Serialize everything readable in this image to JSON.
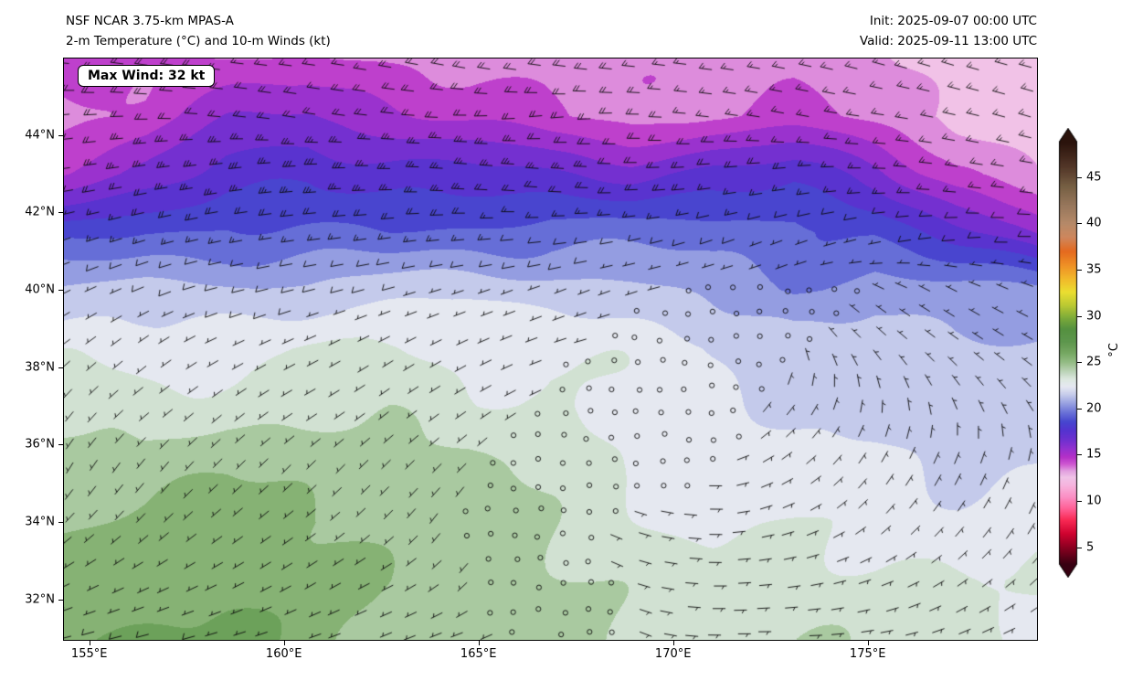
{
  "header": {
    "title_line1": "NSF NCAR 3.75-km MPAS-A",
    "title_line2": "2-m Temperature (°C) and 10-m Winds (kt)",
    "init_label": "Init: 2025-09-07 00:00 UTC",
    "valid_label": "Valid: 2025-09-11 13:00 UTC"
  },
  "map": {
    "max_wind_badge": "Max Wind: 32 kt"
  },
  "axes": {
    "lon_range": [
      154.35,
      179.35
    ],
    "lat_range": [
      30.95,
      45.98
    ],
    "x_ticks": [
      {
        "value": 155,
        "label": "155°E"
      },
      {
        "value": 160,
        "label": "160°E"
      },
      {
        "value": 165,
        "label": "165°E"
      },
      {
        "value": 170,
        "label": "170°E"
      },
      {
        "value": 175,
        "label": "175°E"
      }
    ],
    "y_ticks": [
      {
        "value": 32,
        "label": "32°N"
      },
      {
        "value": 34,
        "label": "34°N"
      },
      {
        "value": 36,
        "label": "36°N"
      },
      {
        "value": 38,
        "label": "38°N"
      },
      {
        "value": 40,
        "label": "40°N"
      },
      {
        "value": 42,
        "label": "42°N"
      },
      {
        "value": 44,
        "label": "44°N"
      }
    ]
  },
  "colorbar": {
    "label": "°C",
    "ticks": [
      5,
      10,
      15,
      20,
      25,
      30,
      35,
      40,
      45
    ],
    "range": [
      3.2,
      48.8
    ],
    "stops": [
      [
        3.0,
        "#2e0110"
      ],
      [
        5.0,
        "#8a0021"
      ],
      [
        6.5,
        "#cf0330"
      ],
      [
        8.0,
        "#f92a55"
      ],
      [
        9.2,
        "#ff5f95"
      ],
      [
        10.5,
        "#fb90c5"
      ],
      [
        11.7,
        "#f7b3de"
      ],
      [
        12.6,
        "#f0c4e8"
      ],
      [
        13.3,
        "#e2a0e0"
      ],
      [
        14.0,
        "#cf5ad2"
      ],
      [
        14.8,
        "#b430c8"
      ],
      [
        15.6,
        "#9632cf"
      ],
      [
        16.6,
        "#7030d0"
      ],
      [
        17.6,
        "#5633cf"
      ],
      [
        18.6,
        "#4747cf"
      ],
      [
        19.6,
        "#6a72d8"
      ],
      [
        20.6,
        "#99a2e2"
      ],
      [
        21.6,
        "#c9cfec"
      ],
      [
        22.4,
        "#e6e8f2"
      ],
      [
        23.2,
        "#dde8e0"
      ],
      [
        24.0,
        "#bdd5ba"
      ],
      [
        25.0,
        "#95bd86"
      ],
      [
        26.0,
        "#76a863"
      ],
      [
        27.2,
        "#5e974e"
      ],
      [
        28.6,
        "#559140"
      ],
      [
        29.8,
        "#7cab3a"
      ],
      [
        31.2,
        "#bcca33"
      ],
      [
        32.6,
        "#ebdf31"
      ],
      [
        34.0,
        "#f2ba2b"
      ],
      [
        35.5,
        "#ef9126"
      ],
      [
        37.0,
        "#e56a1f"
      ],
      [
        38.5,
        "#cf875d"
      ],
      [
        40.0,
        "#b68a69"
      ],
      [
        42.0,
        "#97775c"
      ],
      [
        44.0,
        "#776044"
      ],
      [
        46.0,
        "#55392a"
      ],
      [
        48.8,
        "#2b130c"
      ]
    ]
  },
  "chart_data": {
    "type": "heatmap",
    "title": "NSF NCAR 3.75-km MPAS-A",
    "subtitle": "2-m Temperature (°C) and 10-m Winds (kt)",
    "init_time": "2025-09-07 00:00 UTC",
    "valid_time": "2025-09-11 13:00 UTC",
    "max_wind_kt": 32,
    "units": {
      "temperature": "°C",
      "wind": "kt",
      "x": "degrees east",
      "y": "degrees north"
    },
    "xlim": [
      154.35,
      179.35
    ],
    "ylim": [
      30.95,
      45.98
    ],
    "lon_grid": [
      154.35,
      156.43,
      158.52,
      160.6,
      162.68,
      164.77,
      166.85,
      168.93,
      171.02,
      173.1,
      175.18,
      177.27,
      179.35
    ],
    "lat_grid": [
      46.0,
      44.5,
      43.0,
      41.5,
      40.0,
      38.5,
      37.0,
      35.5,
      34.0,
      32.5,
      31.0
    ],
    "temperature_c": [
      [
        14.0,
        13.8,
        13.9,
        14.2,
        14.0,
        13.8,
        14.0,
        14.1,
        13.8,
        13.6,
        13.0,
        12.2,
        11.8
      ],
      [
        13.8,
        14.3,
        15.7,
        16.4,
        15.8,
        14.9,
        14.1,
        13.7,
        14.0,
        13.9,
        13.3,
        12.7,
        12.5
      ],
      [
        15.2,
        16.2,
        17.6,
        18.2,
        17.8,
        17.6,
        17.0,
        16.6,
        17.2,
        17.4,
        16.2,
        14.3,
        13.3
      ],
      [
        18.4,
        19.2,
        19.6,
        19.2,
        19.0,
        19.2,
        19.6,
        19.2,
        19.0,
        19.4,
        18.8,
        17.2,
        16.0
      ],
      [
        21.2,
        21.6,
        21.6,
        21.4,
        21.6,
        21.6,
        21.4,
        21.0,
        20.4,
        19.8,
        20.8,
        20.6,
        20.4
      ],
      [
        23.0,
        23.0,
        22.8,
        23.0,
        22.9,
        22.8,
        22.8,
        22.4,
        22.0,
        21.8,
        21.9,
        21.4,
        21.4
      ],
      [
        23.7,
        23.5,
        23.7,
        23.5,
        23.4,
        23.1,
        23.0,
        22.7,
        22.3,
        22.1,
        22.1,
        21.7,
        21.7
      ],
      [
        24.6,
        24.4,
        24.6,
        24.4,
        24.1,
        24.0,
        23.5,
        23.0,
        22.7,
        22.5,
        22.4,
        22.1,
        22.0
      ],
      [
        25.1,
        25.0,
        25.2,
        25.0,
        24.7,
        24.4,
        24.0,
        23.5,
        23.1,
        23.0,
        22.8,
        22.5,
        22.4
      ],
      [
        25.6,
        25.5,
        25.4,
        25.2,
        25.0,
        24.7,
        24.3,
        24.0,
        23.7,
        23.4,
        23.1,
        23.0,
        22.9
      ],
      [
        26.1,
        25.9,
        25.7,
        25.5,
        25.1,
        25.0,
        24.6,
        24.3,
        24.0,
        23.7,
        23.4,
        23.2,
        23.0
      ]
    ],
    "wind_u_kt": [
      [
        18,
        18,
        17,
        16,
        17,
        18,
        18,
        17,
        16,
        15,
        14,
        13,
        12
      ],
      [
        20,
        22,
        20,
        18,
        20,
        22,
        20,
        18,
        17,
        16,
        15,
        14,
        13
      ],
      [
        22,
        25,
        28,
        30,
        28,
        26,
        24,
        22,
        20,
        18,
        16,
        15,
        14
      ],
      [
        12,
        14,
        15,
        16,
        15,
        14,
        12,
        10,
        9,
        8,
        8,
        9,
        10
      ],
      [
        6,
        7,
        8,
        8,
        7,
        6,
        5,
        3,
        1,
        0,
        2,
        4,
        5
      ],
      [
        5,
        5,
        6,
        6,
        5,
        4,
        3,
        1,
        0,
        1,
        3,
        4,
        5
      ],
      [
        4,
        5,
        5,
        5,
        4,
        3,
        2,
        0,
        -1,
        -2,
        0,
        2,
        3
      ],
      [
        3,
        4,
        4,
        4,
        3,
        2,
        0,
        0,
        -2,
        -4,
        -3,
        -2,
        -1
      ],
      [
        4,
        4,
        5,
        4,
        3,
        1,
        -1,
        -3,
        -4,
        -5,
        -4,
        -3,
        -2
      ],
      [
        6,
        6,
        6,
        5,
        4,
        2,
        0,
        -3,
        -5,
        -6,
        -5,
        -4,
        -3
      ],
      [
        8,
        8,
        7,
        6,
        5,
        3,
        1,
        -2,
        -5,
        -6,
        -6,
        -5,
        -4
      ]
    ],
    "wind_v_kt": [
      [
        -2,
        -3,
        -2,
        -2,
        -3,
        -4,
        -3,
        -2,
        -2,
        -3,
        -4,
        -4,
        -3
      ],
      [
        2,
        0,
        -2,
        -3,
        -2,
        0,
        2,
        0,
        -2,
        -3,
        -2,
        -3,
        -4
      ],
      [
        3,
        4,
        4,
        2,
        0,
        -2,
        -2,
        0,
        2,
        2,
        0,
        -2,
        -2
      ],
      [
        4,
        4,
        3,
        2,
        2,
        1,
        1,
        2,
        3,
        3,
        2,
        1,
        0
      ],
      [
        3,
        3,
        2,
        2,
        2,
        2,
        2,
        1,
        0,
        0,
        -1,
        -2,
        -2
      ],
      [
        4,
        4,
        3,
        3,
        3,
        2,
        1,
        0,
        0,
        -2,
        -3,
        -3,
        -3
      ],
      [
        5,
        4,
        4,
        3,
        3,
        2,
        1,
        0,
        -1,
        -3,
        -4,
        -4,
        -4
      ],
      [
        5,
        5,
        4,
        4,
        3,
        2,
        1,
        0,
        0,
        -3,
        -5,
        -5,
        -4
      ],
      [
        4,
        4,
        4,
        3,
        3,
        2,
        1,
        1,
        0,
        -2,
        -4,
        -4,
        -4
      ],
      [
        3,
        3,
        3,
        3,
        2,
        2,
        1,
        1,
        0,
        -1,
        -2,
        -3,
        -3
      ],
      [
        2,
        2,
        2,
        2,
        2,
        1,
        1,
        1,
        0,
        0,
        -1,
        -2,
        -2
      ]
    ],
    "colorbar": {
      "label": "°C",
      "ticks": [
        5,
        10,
        15,
        20,
        25,
        30,
        35,
        40,
        45
      ]
    }
  }
}
